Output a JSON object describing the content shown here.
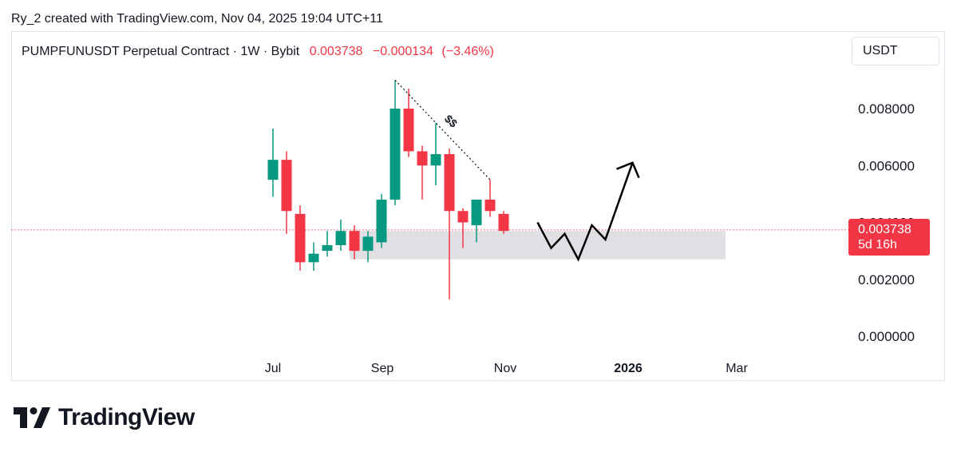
{
  "credit": "Ry_2 created with TradingView.com, Nov 04, 2025 19:04 UTC+11",
  "legend": {
    "symbol": "PUMPFUNUSDT Perpetual Contract · 1W · Bybit",
    "last": "0.003738",
    "change": "−0.000134",
    "change_pct": "(−3.46%)"
  },
  "unit_selector": "USDT",
  "price_tag": {
    "price": "0.003738",
    "countdown": "5d 16h"
  },
  "colors": {
    "up": "#089981",
    "down": "#f23645",
    "zone": "#e0e0e4",
    "pricing_line": "#f23645"
  },
  "logo": {
    "text": "TradingView",
    "icon": "tradingview-logo-icon"
  },
  "chart_data": {
    "type": "candlestick",
    "interval": "1W",
    "y_axis": {
      "ticks": [
        "0.008000",
        "0.006000",
        "0.004000",
        "0.002000",
        "0.000000"
      ],
      "range": [
        -0.0002,
        0.0093
      ],
      "position": "right"
    },
    "x_axis": {
      "ticks": [
        "Jul",
        "Sep",
        "Nov",
        "2026",
        "Mar"
      ],
      "bold_ticks": [
        "2026"
      ]
    },
    "current_price": 0.003738,
    "candles": [
      {
        "open": 0.0055,
        "high": 0.0073,
        "low": 0.0049,
        "close": 0.0062
      },
      {
        "open": 0.0062,
        "high": 0.0065,
        "low": 0.0036,
        "close": 0.0044
      },
      {
        "open": 0.0043,
        "high": 0.0046,
        "low": 0.0023,
        "close": 0.0026
      },
      {
        "open": 0.0026,
        "high": 0.0033,
        "low": 0.0023,
        "close": 0.0029
      },
      {
        "open": 0.003,
        "high": 0.0037,
        "low": 0.0028,
        "close": 0.0032
      },
      {
        "open": 0.0032,
        "high": 0.0041,
        "low": 0.003,
        "close": 0.0037
      },
      {
        "open": 0.0037,
        "high": 0.0039,
        "low": 0.0027,
        "close": 0.003
      },
      {
        "open": 0.003,
        "high": 0.0037,
        "low": 0.0026,
        "close": 0.0035
      },
      {
        "open": 0.0033,
        "high": 0.005,
        "low": 0.0031,
        "close": 0.0048
      },
      {
        "open": 0.0048,
        "high": 0.009,
        "low": 0.0046,
        "close": 0.008
      },
      {
        "open": 0.008,
        "high": 0.0087,
        "low": 0.0063,
        "close": 0.0065
      },
      {
        "open": 0.0065,
        "high": 0.0067,
        "low": 0.0048,
        "close": 0.006
      },
      {
        "open": 0.006,
        "high": 0.0075,
        "low": 0.0053,
        "close": 0.0064
      },
      {
        "open": 0.0064,
        "high": 0.0066,
        "low": 0.0013,
        "close": 0.0044
      },
      {
        "open": 0.0044,
        "high": 0.0045,
        "low": 0.0031,
        "close": 0.004
      },
      {
        "open": 0.0039,
        "high": 0.0048,
        "low": 0.0033,
        "close": 0.0048
      },
      {
        "open": 0.0048,
        "high": 0.0055,
        "low": 0.0042,
        "close": 0.0044
      },
      {
        "open": 0.0043,
        "high": 0.0044,
        "low": 0.0036,
        "close": 0.0037
      }
    ],
    "annotations": {
      "trendline_label": "$$",
      "support_zone": {
        "from_candle": 6,
        "to_candle": 33,
        "top": 0.0037,
        "bottom": 0.0027
      },
      "projection_path": [
        {
          "candle": 19.5,
          "price": 0.004
        },
        {
          "candle": 20.5,
          "price": 0.0031
        },
        {
          "candle": 21.5,
          "price": 0.0036
        },
        {
          "candle": 22.5,
          "price": 0.0027
        },
        {
          "candle": 23.5,
          "price": 0.0039
        },
        {
          "candle": 24.5,
          "price": 0.0034
        },
        {
          "candle": 26.5,
          "price": 0.0061
        }
      ]
    }
  }
}
